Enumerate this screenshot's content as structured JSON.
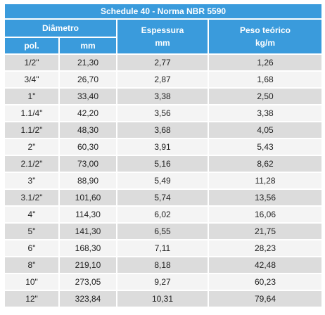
{
  "title": "Schedule 40 - Norma NBR 5590",
  "headers": {
    "diametro": "Diâmetro",
    "pol": "pol.",
    "mm": "mm",
    "espessura": "Espessura",
    "espessura_unit": "mm",
    "peso": "Peso teórico",
    "peso_unit": "kg/m"
  },
  "rows": [
    {
      "pol": "1/2\"",
      "mm": "21,30",
      "esp": "2,77",
      "peso": "1,26"
    },
    {
      "pol": "3/4\"",
      "mm": "26,70",
      "esp": "2,87",
      "peso": "1,68"
    },
    {
      "pol": "1\"",
      "mm": "33,40",
      "esp": "3,38",
      "peso": "2,50"
    },
    {
      "pol": "1.1/4\"",
      "mm": "42,20",
      "esp": "3,56",
      "peso": "3,38"
    },
    {
      "pol": "1.1/2\"",
      "mm": "48,30",
      "esp": "3,68",
      "peso": "4,05"
    },
    {
      "pol": "2\"",
      "mm": "60,30",
      "esp": "3,91",
      "peso": "5,43"
    },
    {
      "pol": "2.1/2\"",
      "mm": "73,00",
      "esp": "5,16",
      "peso": "8,62"
    },
    {
      "pol": "3\"",
      "mm": "88,90",
      "esp": "5,49",
      "peso": "11,28"
    },
    {
      "pol": "3.1/2\"",
      "mm": "101,60",
      "esp": "5,74",
      "peso": "13,56"
    },
    {
      "pol": "4\"",
      "mm": "114,30",
      "esp": "6,02",
      "peso": "16,06"
    },
    {
      "pol": "5\"",
      "mm": "141,30",
      "esp": "6,55",
      "peso": "21,75"
    },
    {
      "pol": "6\"",
      "mm": "168,30",
      "esp": "7,11",
      "peso": "28,23"
    },
    {
      "pol": "8\"",
      "mm": "219,10",
      "esp": "8,18",
      "peso": "42,48"
    },
    {
      "pol": "10\"",
      "mm": "273,05",
      "esp": "9,27",
      "peso": "60,23"
    },
    {
      "pol": "12\"",
      "mm": "323,84",
      "esp": "10,31",
      "peso": "79,64"
    }
  ]
}
